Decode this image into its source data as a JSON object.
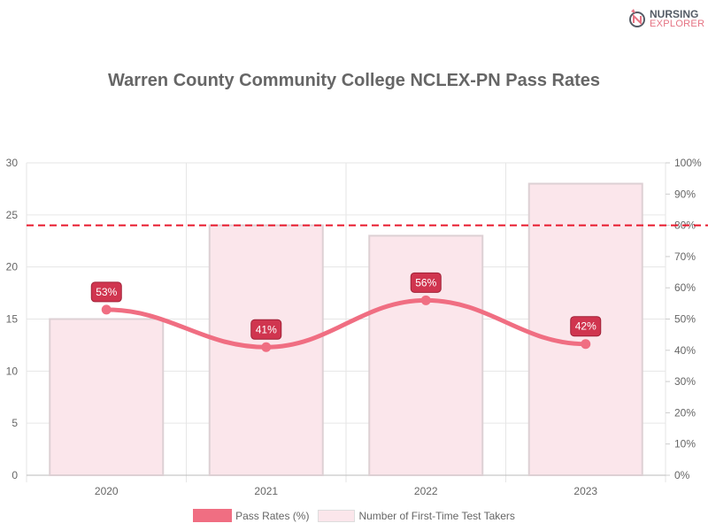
{
  "logo": {
    "line1": "NURSING",
    "line2": "EXPLORER"
  },
  "chart_data": {
    "type": "bar+line",
    "title": "Warren County Community College NCLEX-PN Pass Rates",
    "categories": [
      "2020",
      "2021",
      "2022",
      "2023"
    ],
    "series": [
      {
        "name": "Pass Rates (%)",
        "type": "line",
        "axis": "right",
        "values": [
          53,
          41,
          56,
          42
        ],
        "labels": [
          "53%",
          "41%",
          "56%",
          "42%"
        ],
        "color": "#f06e82"
      },
      {
        "name": "Number of First-Time Test Takers",
        "type": "bar",
        "axis": "left",
        "values": [
          15,
          24,
          23,
          28
        ],
        "color": "#fbe6eb"
      }
    ],
    "reference_line": {
      "value": 80,
      "axis": "right",
      "color": "#e8192c",
      "style": "dashed"
    },
    "left_axis": {
      "ylim": [
        0,
        30
      ],
      "ticks": [
        "0",
        "5",
        "10",
        "15",
        "20",
        "25",
        "30"
      ]
    },
    "right_axis": {
      "ylim": [
        0,
        100
      ],
      "ticks": [
        "0%",
        "10%",
        "20%",
        "30%",
        "40%",
        "50%",
        "60%",
        "70%",
        "80%",
        "90%",
        "100%"
      ]
    },
    "grid": true,
    "legend": "bottom",
    "label_color": "#d0354f"
  }
}
